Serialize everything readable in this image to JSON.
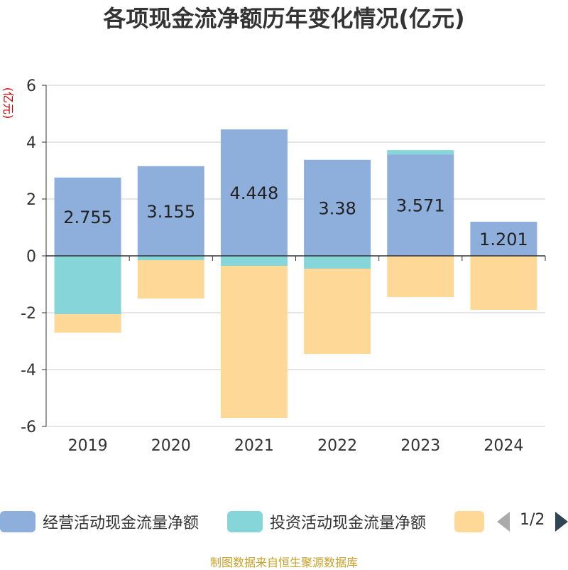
{
  "title": "各项现金流净额历年变化情况(亿元)",
  "source": "制图数据来自恒生聚源数据库",
  "legend": {
    "items": [
      {
        "label": "经营活动现金流量净额",
        "color": "#8eaedb"
      },
      {
        "label": "投资活动现金流量净额",
        "color": "#86d5d8"
      },
      {
        "label": "",
        "color": "#fed896"
      }
    ],
    "page": "1/2"
  },
  "chart_data": {
    "type": "bar",
    "stacked": true,
    "categories": [
      "2019",
      "2020",
      "2021",
      "2022",
      "2023",
      "2024"
    ],
    "ylabel": "(亿元)",
    "ylim": [
      -6,
      6
    ],
    "yticks": [
      6,
      4,
      2,
      0,
      -2,
      -4,
      -6
    ],
    "grid": true,
    "legend_position": "bottom",
    "series": [
      {
        "name": "经营活动现金流量净额",
        "color": "#8eaedb",
        "values": [
          2.755,
          3.155,
          4.448,
          3.38,
          3.571,
          1.201
        ],
        "show_labels": true
      },
      {
        "name": "投资活动现金流量净额",
        "color": "#86d5d8",
        "values": [
          -2.05,
          -0.15,
          -0.35,
          -0.45,
          0.15,
          0
        ],
        "show_labels": false
      },
      {
        "color": "#fed896",
        "values": [
          -0.65,
          -1.35,
          -5.35,
          -3.0,
          -1.45,
          -1.9
        ],
        "show_labels": false
      }
    ]
  }
}
